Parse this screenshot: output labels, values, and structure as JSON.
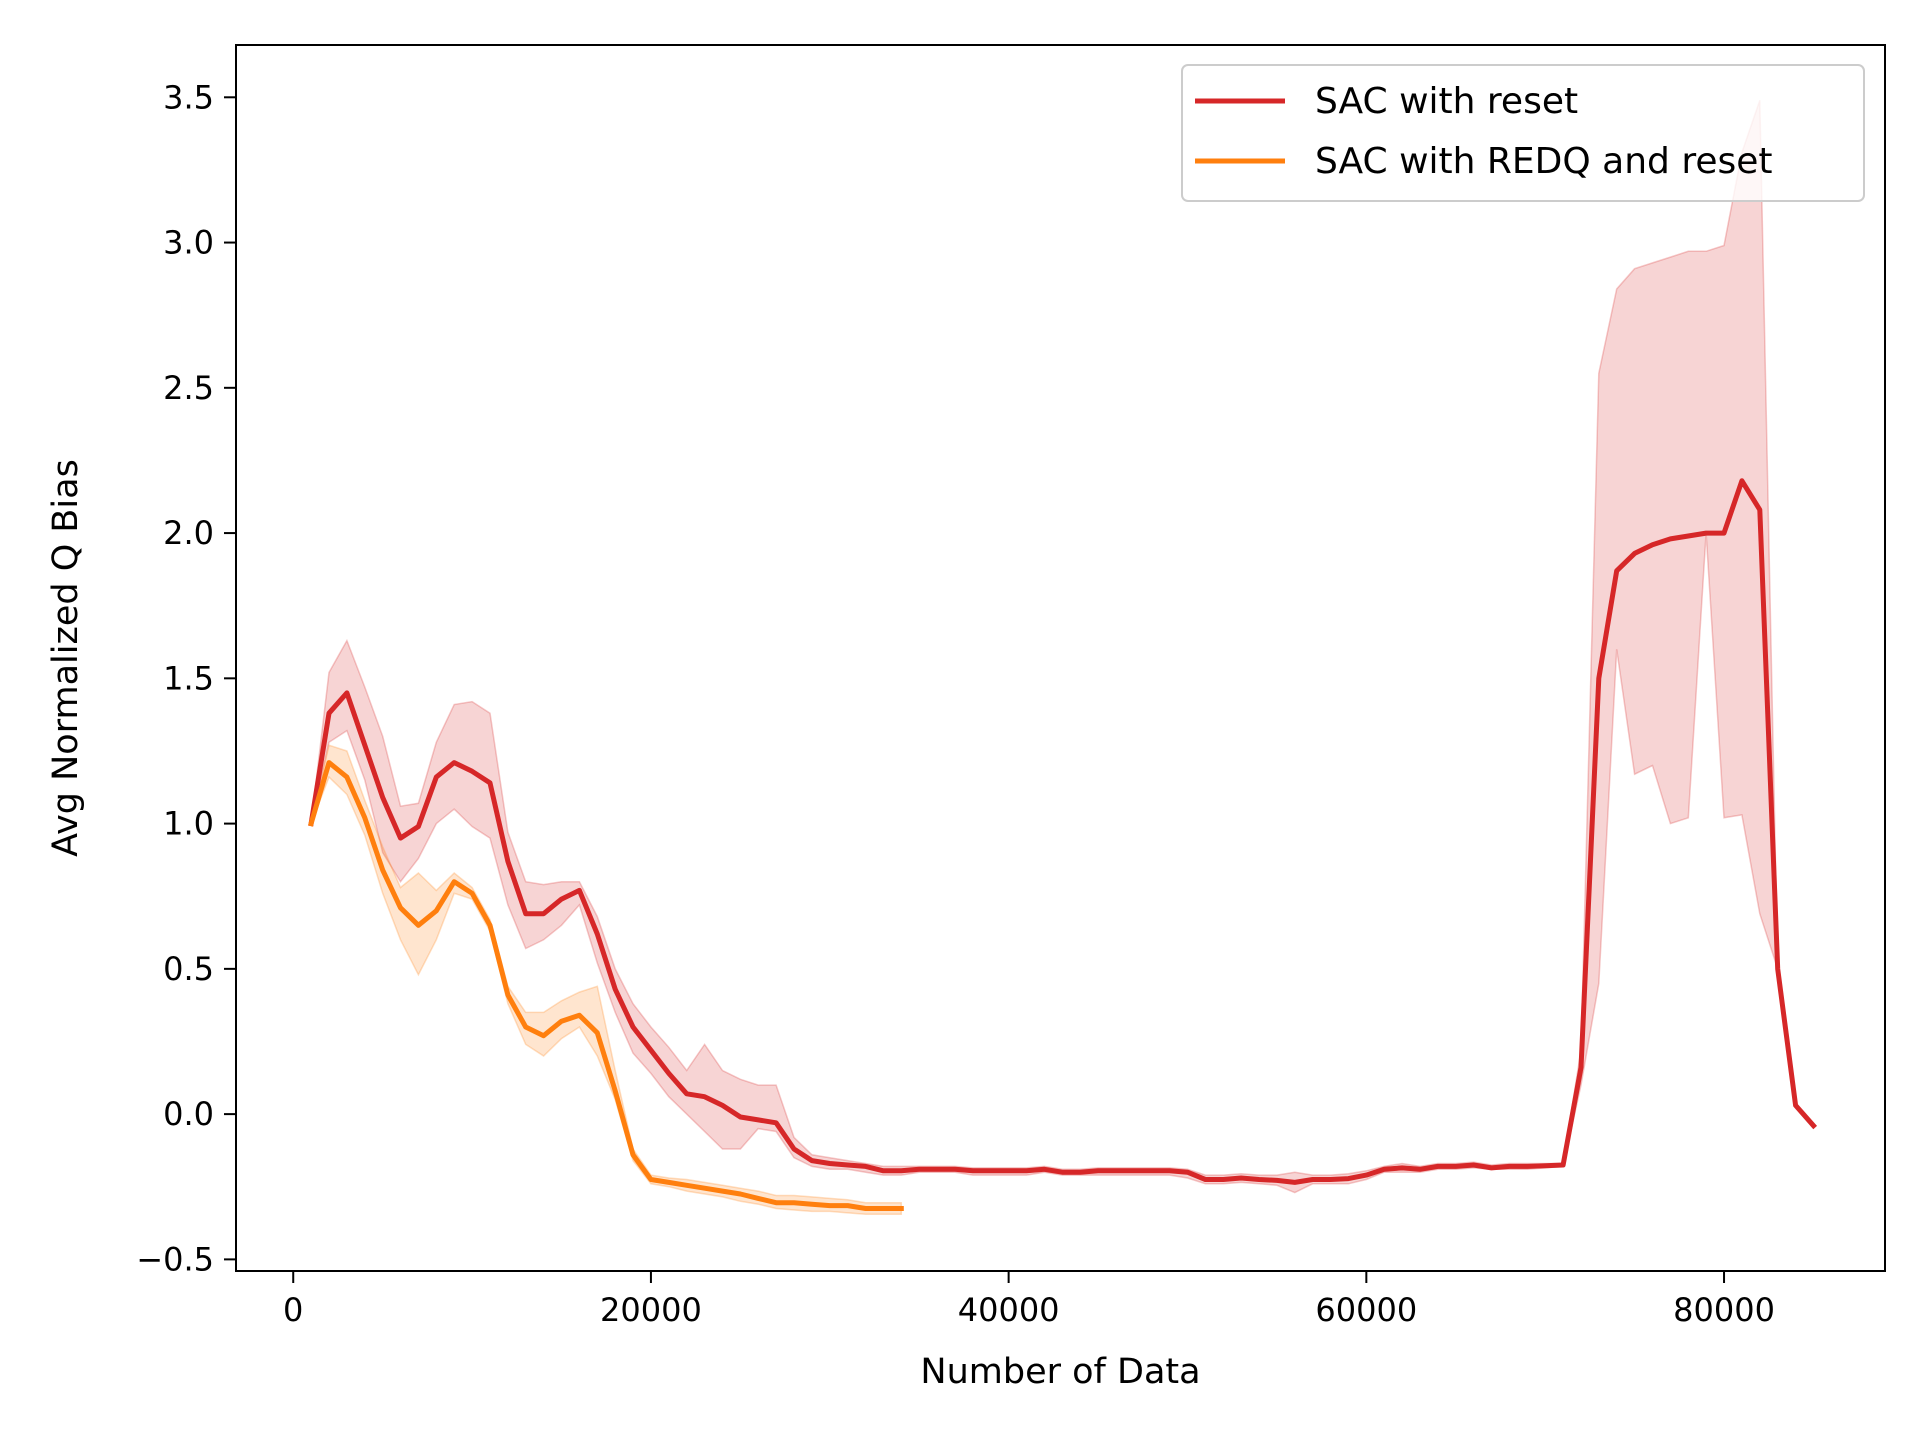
{
  "chart_data": {
    "type": "line",
    "title": "",
    "xlabel": "Number of Data",
    "ylabel": "Avg Normalized Q Bias",
    "xlim": [
      -3200,
      89000
    ],
    "ylim": [
      -0.54,
      3.68
    ],
    "xticks": [
      0,
      20000,
      40000,
      60000,
      80000
    ],
    "xtick_labels": [
      "0",
      "20000",
      "40000",
      "60000",
      "80000"
    ],
    "yticks": [
      -0.5,
      0.0,
      0.5,
      1.0,
      1.5,
      2.0,
      2.5,
      3.0,
      3.5
    ],
    "ytick_labels": [
      "−0.5",
      "0.0",
      "0.5",
      "1.0",
      "1.5",
      "2.0",
      "2.5",
      "3.0",
      "3.5"
    ],
    "grid": false,
    "legend_position": "top-right",
    "series": [
      {
        "name": "SAC with reset",
        "color": "#d62728",
        "band_color": "#d62728",
        "x": [
          1000,
          2000,
          3000,
          4000,
          5000,
          6000,
          7000,
          8000,
          9000,
          10000,
          11000,
          12000,
          13000,
          14000,
          15000,
          16000,
          17000,
          18000,
          19000,
          20000,
          21000,
          22000,
          23000,
          24000,
          25000,
          26000,
          27000,
          28000,
          29000,
          30000,
          31000,
          32000,
          33000,
          34000,
          35000,
          36000,
          37000,
          38000,
          39000,
          40000,
          41000,
          42000,
          43000,
          44000,
          45000,
          46000,
          47000,
          48000,
          49000,
          50000,
          51000,
          52000,
          53000,
          54000,
          55000,
          56000,
          57000,
          58000,
          59000,
          60000,
          61000,
          62000,
          63000,
          64000,
          65000,
          66000,
          67000,
          68000,
          69000,
          70000,
          71000,
          72000,
          73000,
          74000,
          75000,
          76000,
          77000,
          78000,
          79000,
          80000,
          81000,
          82000,
          83000,
          84000,
          85000
        ],
        "y": [
          1.0,
          1.38,
          1.45,
          1.27,
          1.09,
          0.95,
          0.99,
          1.16,
          1.21,
          1.18,
          1.14,
          0.87,
          0.69,
          0.69,
          0.74,
          0.77,
          0.62,
          0.43,
          0.3,
          0.22,
          0.14,
          0.07,
          0.06,
          0.03,
          -0.01,
          -0.02,
          -0.03,
          -0.12,
          -0.16,
          -0.17,
          -0.175,
          -0.18,
          -0.195,
          -0.195,
          -0.19,
          -0.19,
          -0.19,
          -0.195,
          -0.195,
          -0.195,
          -0.195,
          -0.19,
          -0.2,
          -0.2,
          -0.195,
          -0.195,
          -0.195,
          -0.195,
          -0.195,
          -0.2,
          -0.225,
          -0.225,
          -0.22,
          -0.225,
          -0.228,
          -0.235,
          -0.225,
          -0.225,
          -0.222,
          -0.21,
          -0.19,
          -0.185,
          -0.19,
          -0.18,
          -0.18,
          -0.175,
          -0.185,
          -0.18,
          -0.18,
          -0.178,
          -0.175,
          0.16,
          1.5,
          1.87,
          1.93,
          1.96,
          1.98,
          1.99,
          2.0,
          2.0,
          2.18,
          2.08,
          0.5,
          0.03,
          -0.04
        ],
        "lower": [
          1.0,
          1.28,
          1.32,
          1.15,
          0.9,
          0.8,
          0.88,
          1.0,
          1.05,
          0.99,
          0.95,
          0.72,
          0.57,
          0.6,
          0.65,
          0.72,
          0.52,
          0.35,
          0.21,
          0.14,
          0.06,
          0.0,
          -0.06,
          -0.12,
          -0.12,
          -0.05,
          -0.06,
          -0.15,
          -0.18,
          -0.19,
          -0.19,
          -0.2,
          -0.21,
          -0.21,
          -0.2,
          -0.2,
          -0.2,
          -0.21,
          -0.21,
          -0.21,
          -0.21,
          -0.2,
          -0.21,
          -0.21,
          -0.21,
          -0.21,
          -0.21,
          -0.21,
          -0.21,
          -0.22,
          -0.24,
          -0.24,
          -0.235,
          -0.24,
          -0.245,
          -0.27,
          -0.24,
          -0.24,
          -0.24,
          -0.225,
          -0.2,
          -0.2,
          -0.2,
          -0.19,
          -0.19,
          -0.185,
          -0.19,
          -0.19,
          -0.19,
          -0.185,
          -0.18,
          0.1,
          0.45,
          1.6,
          1.17,
          1.2,
          1.0,
          1.02,
          2.0,
          1.02,
          1.03,
          0.69,
          0.5,
          0.03,
          -0.04
        ],
        "upper": [
          1.0,
          1.52,
          1.63,
          1.47,
          1.3,
          1.06,
          1.07,
          1.28,
          1.41,
          1.42,
          1.38,
          0.97,
          0.8,
          0.79,
          0.8,
          0.8,
          0.68,
          0.5,
          0.38,
          0.3,
          0.23,
          0.15,
          0.24,
          0.15,
          0.12,
          0.1,
          0.1,
          -0.08,
          -0.14,
          -0.15,
          -0.16,
          -0.17,
          -0.18,
          -0.18,
          -0.18,
          -0.18,
          -0.18,
          -0.185,
          -0.185,
          -0.185,
          -0.185,
          -0.18,
          -0.19,
          -0.19,
          -0.185,
          -0.185,
          -0.185,
          -0.185,
          -0.185,
          -0.19,
          -0.21,
          -0.21,
          -0.205,
          -0.21,
          -0.21,
          -0.2,
          -0.21,
          -0.21,
          -0.205,
          -0.195,
          -0.18,
          -0.17,
          -0.18,
          -0.17,
          -0.17,
          -0.165,
          -0.175,
          -0.17,
          -0.17,
          -0.17,
          -0.17,
          0.22,
          2.55,
          2.84,
          2.91,
          2.93,
          2.95,
          2.97,
          2.97,
          2.99,
          3.31,
          3.49,
          0.5,
          0.03,
          -0.04
        ]
      },
      {
        "name": "SAC with REDQ and reset",
        "color": "#ff7f0e",
        "band_color": "#ff7f0e",
        "x": [
          1000,
          2000,
          3000,
          4000,
          5000,
          6000,
          7000,
          8000,
          9000,
          10000,
          11000,
          12000,
          13000,
          14000,
          15000,
          16000,
          17000,
          18000,
          19000,
          20000,
          21000,
          22000,
          23000,
          24000,
          25000,
          26000,
          27000,
          28000,
          29000,
          30000,
          31000,
          32000,
          33000,
          34000
        ],
        "y": [
          1.0,
          1.21,
          1.16,
          1.02,
          0.84,
          0.71,
          0.65,
          0.7,
          0.8,
          0.76,
          0.65,
          0.41,
          0.3,
          0.27,
          0.32,
          0.34,
          0.28,
          0.08,
          -0.14,
          -0.225,
          -0.235,
          -0.245,
          -0.255,
          -0.265,
          -0.275,
          -0.29,
          -0.305,
          -0.305,
          -0.31,
          -0.315,
          -0.315,
          -0.325,
          -0.325,
          -0.325
        ],
        "lower": [
          1.0,
          1.16,
          1.1,
          0.96,
          0.76,
          0.6,
          0.48,
          0.6,
          0.76,
          0.74,
          0.63,
          0.38,
          0.24,
          0.2,
          0.26,
          0.3,
          0.2,
          0.05,
          -0.16,
          -0.24,
          -0.25,
          -0.265,
          -0.275,
          -0.285,
          -0.3,
          -0.31,
          -0.325,
          -0.33,
          -0.335,
          -0.335,
          -0.34,
          -0.345,
          -0.345,
          -0.345
        ],
        "upper": [
          1.0,
          1.27,
          1.25,
          1.08,
          0.92,
          0.78,
          0.83,
          0.77,
          0.83,
          0.78,
          0.67,
          0.44,
          0.35,
          0.35,
          0.39,
          0.42,
          0.44,
          0.15,
          -0.12,
          -0.21,
          -0.22,
          -0.225,
          -0.235,
          -0.245,
          -0.255,
          -0.265,
          -0.28,
          -0.28,
          -0.285,
          -0.29,
          -0.295,
          -0.305,
          -0.305,
          -0.305
        ]
      }
    ]
  }
}
